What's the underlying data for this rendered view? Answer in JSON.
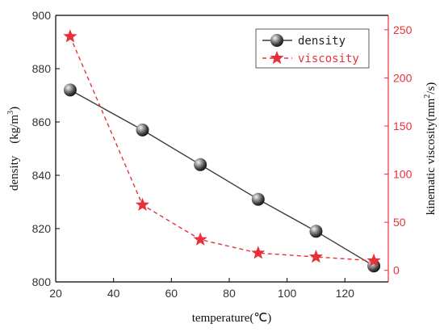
{
  "chart_data": {
    "type": "line",
    "xlabel": "temperature(℃)",
    "ylabel_left": "density　(kg/m",
    "ylabel_left_sup": "3",
    "ylabel_left_tail": ")",
    "ylabel_right": "kinematic viscosity(mm",
    "ylabel_right_sup": "2",
    "ylabel_right_tail": "/s)",
    "xlim": [
      20,
      135
    ],
    "ylim_left": [
      800,
      900
    ],
    "ylim_right": [
      -12,
      265
    ],
    "x_ticks": [
      20,
      40,
      60,
      80,
      100,
      120
    ],
    "y_left_ticks": [
      800,
      820,
      840,
      860,
      880,
      900
    ],
    "y_right_ticks": [
      0,
      50,
      100,
      150,
      200,
      250
    ],
    "legend_position": "top-right",
    "series": [
      {
        "name": "density",
        "axis": "left",
        "color": "#3a3a3a",
        "marker": "sphere",
        "line": "solid",
        "x": [
          25,
          50,
          70,
          90,
          110,
          130
        ],
        "y": [
          872,
          857,
          844,
          831,
          819,
          806
        ]
      },
      {
        "name": "viscosity",
        "axis": "right",
        "color": "#e8303a",
        "marker": "star",
        "line": "dashed",
        "x": [
          25,
          50,
          70,
          90,
          110,
          130
        ],
        "y": [
          243,
          68,
          32,
          18,
          14,
          10
        ]
      }
    ]
  }
}
